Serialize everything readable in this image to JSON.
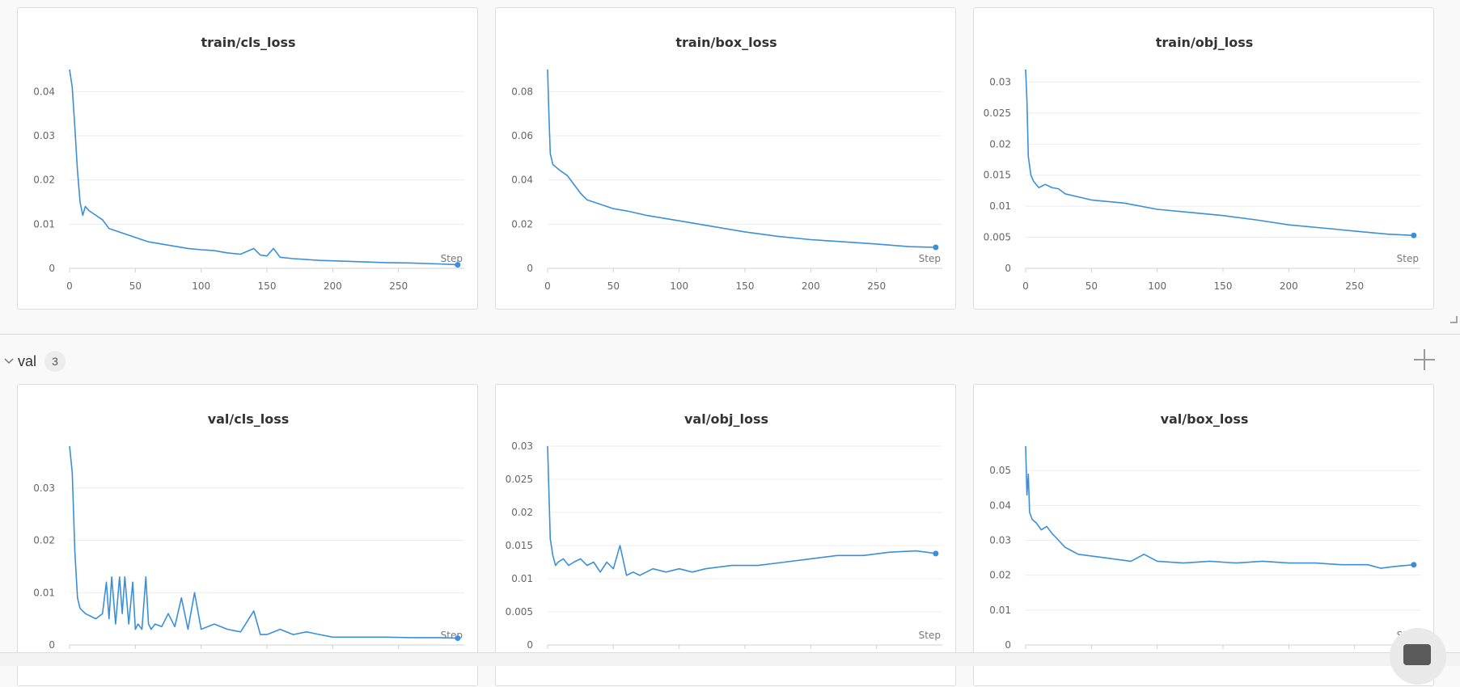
{
  "colors": {
    "line": "#3b8fd9",
    "background": "#f9f9f9",
    "panel": "#ffffff"
  },
  "sections": [
    {
      "name": "val",
      "count": "3"
    }
  ],
  "step_label": "Step",
  "chart_data": [
    {
      "type": "line",
      "title": "train/cls_loss",
      "xlabel": "Step",
      "ylabel": "",
      "xlim": [
        0,
        300
      ],
      "ylim": [
        0,
        0.045
      ],
      "xticks": [
        0,
        50,
        100,
        150,
        200,
        250
      ],
      "yticks": [
        0,
        0.01,
        0.02,
        0.03,
        0.04
      ],
      "ytick_labels": [
        "0",
        "0.01",
        "0.02",
        "0.03",
        "0.04"
      ],
      "series": [
        {
          "x": [
            0,
            2,
            4,
            6,
            8,
            10,
            12,
            15,
            20,
            25,
            30,
            40,
            50,
            60,
            70,
            80,
            90,
            100,
            110,
            120,
            130,
            140,
            145,
            150,
            155,
            160,
            170,
            180,
            190,
            200,
            220,
            240,
            260,
            280,
            295
          ],
          "y": [
            0.045,
            0.041,
            0.032,
            0.022,
            0.015,
            0.012,
            0.014,
            0.013,
            0.012,
            0.011,
            0.009,
            0.008,
            0.007,
            0.006,
            0.0055,
            0.005,
            0.0045,
            0.0042,
            0.004,
            0.0035,
            0.0032,
            0.0045,
            0.003,
            0.0028,
            0.0045,
            0.0025,
            0.0022,
            0.002,
            0.0018,
            0.0017,
            0.0015,
            0.0013,
            0.0012,
            0.001,
            0.0008
          ]
        }
      ]
    },
    {
      "type": "line",
      "title": "train/box_loss",
      "xlabel": "Step",
      "ylabel": "",
      "xlim": [
        0,
        300
      ],
      "ylim": [
        0,
        0.09
      ],
      "xticks": [
        0,
        50,
        100,
        150,
        200,
        250
      ],
      "yticks": [
        0,
        0.02,
        0.04,
        0.06,
        0.08
      ],
      "ytick_labels": [
        "0",
        "0.02",
        "0.04",
        "0.06",
        "0.08"
      ],
      "series": [
        {
          "x": [
            0,
            1,
            2,
            4,
            6,
            10,
            15,
            20,
            25,
            30,
            40,
            50,
            60,
            75,
            100,
            125,
            150,
            175,
            200,
            225,
            250,
            275,
            295
          ],
          "y": [
            0.09,
            0.07,
            0.052,
            0.047,
            0.046,
            0.044,
            0.042,
            0.038,
            0.034,
            0.031,
            0.029,
            0.027,
            0.026,
            0.024,
            0.0215,
            0.019,
            0.0165,
            0.0145,
            0.013,
            0.012,
            0.011,
            0.0098,
            0.0095
          ]
        }
      ]
    },
    {
      "type": "line",
      "title": "train/obj_loss",
      "xlabel": "Step",
      "ylabel": "",
      "xlim": [
        0,
        300
      ],
      "ylim": [
        0,
        0.032
      ],
      "xticks": [
        0,
        50,
        100,
        150,
        200,
        250
      ],
      "yticks": [
        0,
        0.005,
        0.01,
        0.015,
        0.02,
        0.025,
        0.03
      ],
      "ytick_labels": [
        "0",
        "0.005",
        "0.01",
        "0.015",
        "0.02",
        "0.025",
        "0.03"
      ],
      "series": [
        {
          "x": [
            0,
            1,
            2,
            4,
            6,
            10,
            15,
            20,
            25,
            30,
            40,
            50,
            75,
            100,
            125,
            150,
            175,
            200,
            225,
            250,
            275,
            295
          ],
          "y": [
            0.032,
            0.027,
            0.018,
            0.015,
            0.014,
            0.013,
            0.0135,
            0.013,
            0.0128,
            0.012,
            0.0115,
            0.011,
            0.0105,
            0.0095,
            0.009,
            0.0085,
            0.0078,
            0.007,
            0.0065,
            0.006,
            0.0055,
            0.0053
          ]
        }
      ]
    },
    {
      "type": "line",
      "title": "val/cls_loss",
      "xlabel": "Step",
      "ylabel": "",
      "xlim": [
        0,
        300
      ],
      "ylim": [
        0,
        0.038
      ],
      "xticks": [],
      "yticks": [
        0,
        0.01,
        0.02,
        0.03
      ],
      "ytick_labels": [
        "0",
        "0.01",
        "0.02",
        "0.03"
      ],
      "series": [
        {
          "x": [
            0,
            2,
            4,
            6,
            8,
            12,
            16,
            20,
            25,
            28,
            30,
            32,
            35,
            38,
            40,
            42,
            45,
            48,
            50,
            52,
            55,
            58,
            60,
            62,
            65,
            70,
            75,
            80,
            85,
            90,
            95,
            100,
            110,
            120,
            130,
            140,
            145,
            150,
            160,
            170,
            180,
            190,
            200,
            220,
            240,
            260,
            280,
            295
          ],
          "y": [
            0.038,
            0.033,
            0.018,
            0.009,
            0.007,
            0.006,
            0.0055,
            0.005,
            0.006,
            0.012,
            0.005,
            0.013,
            0.004,
            0.013,
            0.006,
            0.013,
            0.004,
            0.012,
            0.003,
            0.004,
            0.003,
            0.013,
            0.004,
            0.003,
            0.004,
            0.0035,
            0.006,
            0.0035,
            0.009,
            0.003,
            0.01,
            0.003,
            0.004,
            0.003,
            0.0025,
            0.0065,
            0.002,
            0.002,
            0.003,
            0.002,
            0.0025,
            0.002,
            0.0015,
            0.0015,
            0.0015,
            0.0014,
            0.0014,
            0.0013
          ]
        }
      ]
    },
    {
      "type": "line",
      "title": "val/obj_loss",
      "xlabel": "Step",
      "ylabel": "",
      "xlim": [
        0,
        300
      ],
      "ylim": [
        0,
        0.03
      ],
      "xticks": [],
      "yticks": [
        0,
        0.005,
        0.01,
        0.015,
        0.02,
        0.025,
        0.03
      ],
      "ytick_labels": [
        "0",
        "0.005",
        "0.01",
        "0.015",
        "0.02",
        "0.025",
        "0.03"
      ],
      "series": [
        {
          "x": [
            0,
            2,
            4,
            6,
            8,
            12,
            16,
            20,
            25,
            30,
            35,
            40,
            45,
            50,
            55,
            60,
            65,
            70,
            75,
            80,
            90,
            100,
            110,
            120,
            140,
            160,
            180,
            200,
            220,
            240,
            260,
            280,
            295
          ],
          "y": [
            0.03,
            0.016,
            0.0135,
            0.012,
            0.0125,
            0.013,
            0.012,
            0.0125,
            0.013,
            0.012,
            0.0125,
            0.011,
            0.0125,
            0.0115,
            0.015,
            0.0105,
            0.011,
            0.0105,
            0.011,
            0.0115,
            0.011,
            0.0115,
            0.011,
            0.0115,
            0.012,
            0.012,
            0.0125,
            0.013,
            0.0135,
            0.0135,
            0.014,
            0.0142,
            0.0138
          ]
        }
      ]
    },
    {
      "type": "line",
      "title": "val/box_loss",
      "xlabel": "Step",
      "ylabel": "",
      "xlim": [
        0,
        300
      ],
      "ylim": [
        0,
        0.057
      ],
      "xticks": [],
      "yticks": [
        0,
        0.01,
        0.02,
        0.03,
        0.04,
        0.05
      ],
      "ytick_labels": [
        "0",
        "0.01",
        "0.02",
        "0.03",
        "0.04",
        "0.05"
      ],
      "series": [
        {
          "x": [
            0,
            1,
            2,
            3,
            5,
            8,
            12,
            16,
            20,
            25,
            30,
            35,
            40,
            50,
            60,
            70,
            80,
            90,
            100,
            120,
            140,
            160,
            180,
            200,
            220,
            240,
            260,
            270,
            280,
            295
          ],
          "y": [
            0.057,
            0.043,
            0.049,
            0.038,
            0.036,
            0.035,
            0.033,
            0.034,
            0.032,
            0.03,
            0.028,
            0.027,
            0.026,
            0.0255,
            0.025,
            0.0245,
            0.024,
            0.026,
            0.024,
            0.0235,
            0.024,
            0.0235,
            0.024,
            0.0235,
            0.0235,
            0.023,
            0.023,
            0.022,
            0.0225,
            0.023
          ]
        }
      ]
    }
  ]
}
